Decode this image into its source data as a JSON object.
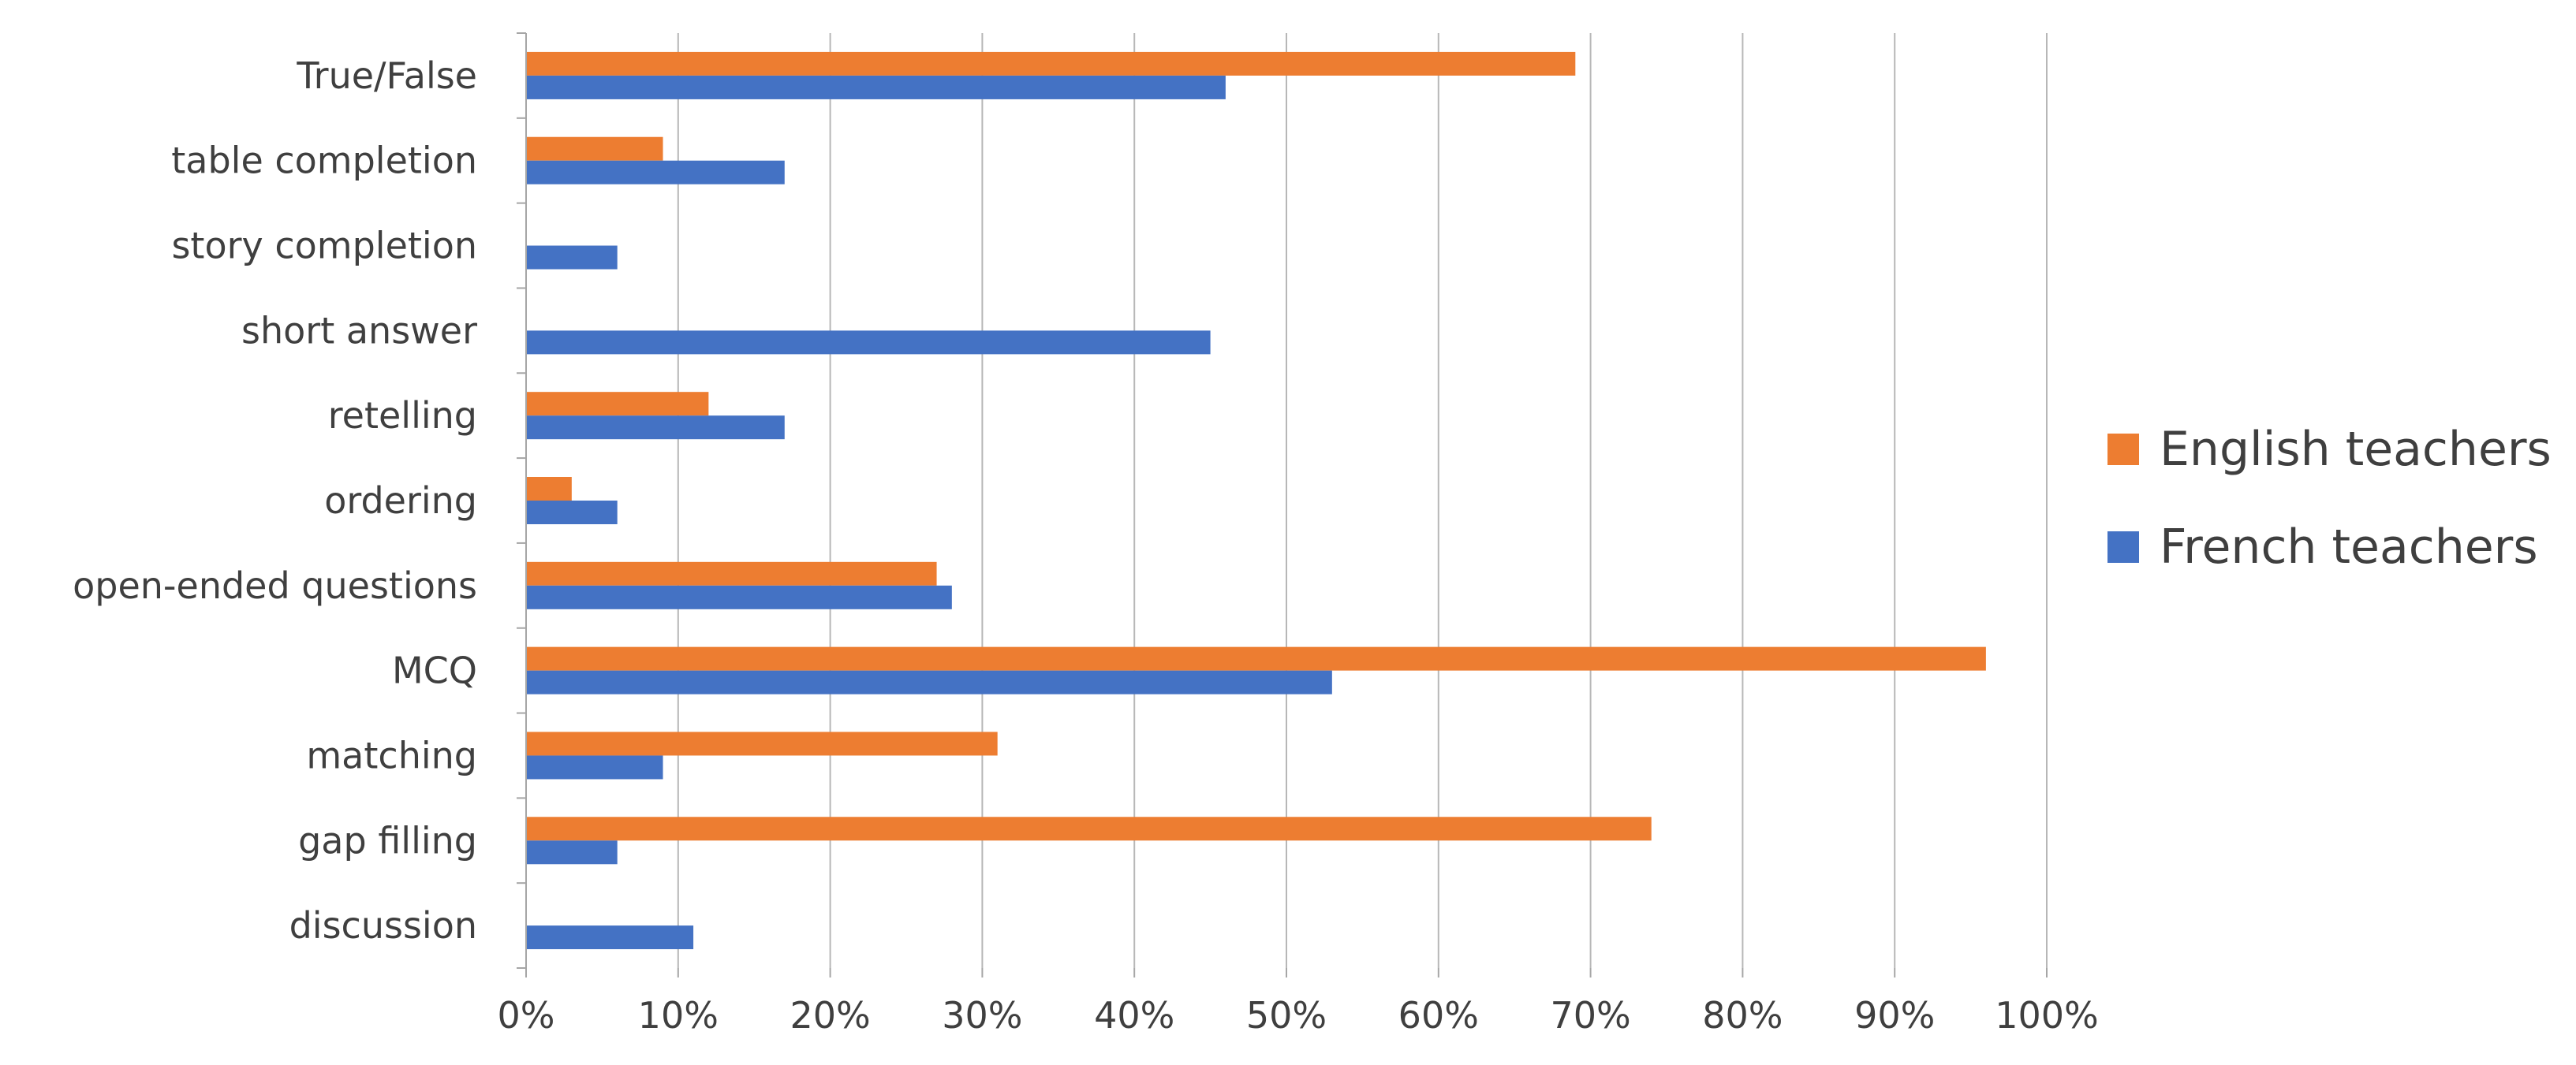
{
  "chart_data": {
    "type": "bar",
    "orientation": "horizontal",
    "categories": [
      "True/False",
      "table completion",
      "story completion",
      "short answer",
      "retelling",
      "ordering",
      "open-ended questions",
      "MCQ",
      "matching",
      "gap filling",
      "discussion"
    ],
    "series": [
      {
        "name": "English teachers",
        "color": "#ED7D31",
        "values": [
          69,
          9,
          0,
          0,
          12,
          3,
          27,
          96,
          31,
          74,
          0
        ]
      },
      {
        "name": "French teachers",
        "color": "#4472C4",
        "values": [
          46,
          17,
          6,
          45,
          17,
          6,
          28,
          53,
          9,
          6,
          11
        ]
      }
    ],
    "x_ticks": [
      "0%",
      "10%",
      "20%",
      "30%",
      "40%",
      "50%",
      "60%",
      "70%",
      "80%",
      "90%",
      "100%"
    ],
    "xlim": [
      0,
      100
    ],
    "unit": "%",
    "grid": "vertical",
    "legend_position": "right",
    "title": "",
    "xlabel": "",
    "ylabel": ""
  }
}
